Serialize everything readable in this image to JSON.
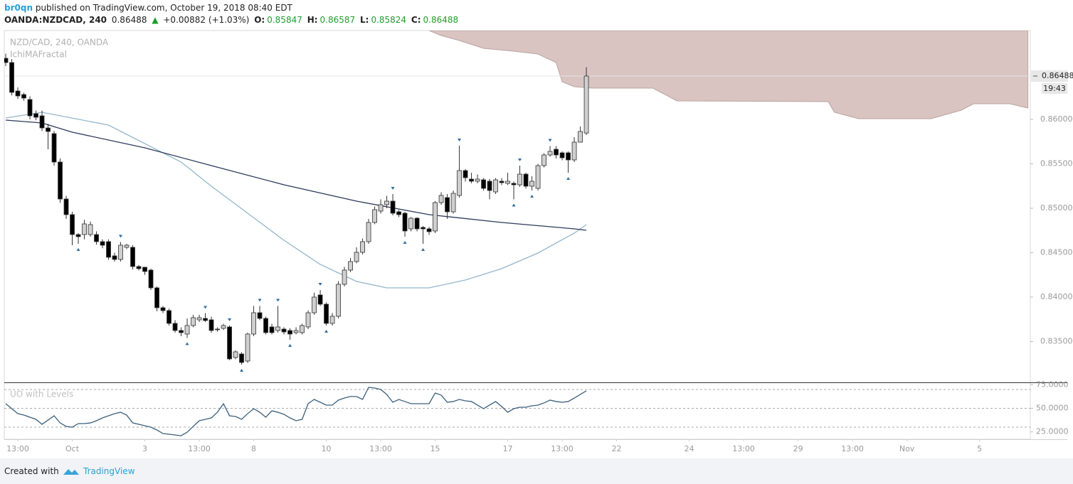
{
  "header": {
    "author": "br0qn",
    "published": "published on TradingView.com, October 19, 2018 08:40 EDT",
    "symbol": "OANDA:NZDCAD, 240",
    "arrow": "▲",
    "change": "+0.00882 (+1.03%)",
    "o": "O:",
    "h": "H:",
    "l": "L:",
    "c": "C:"
  },
  "footer": {
    "created": "Created with",
    "brand": "TradingView"
  },
  "chart_data": {
    "type": "candlestick",
    "title": "NZD/CAD, 240, OANDA",
    "indicator": "IchiMAFractal",
    "countdown": "19:43",
    "up_color": "#cfcfcf",
    "down_color": "#000000",
    "outline_color": "#333333",
    "xlim": [
      -0.24,
      169.4
    ],
    "ylim": [
      0.8304,
      0.87
    ],
    "xticks": [
      {
        "value": 2,
        "label": "13:00"
      },
      {
        "value": 11,
        "label": "Oct"
      },
      {
        "value": 23,
        "label": "3"
      },
      {
        "value": 32,
        "label": "13:00"
      },
      {
        "value": 41,
        "label": "8"
      },
      {
        "value": 53,
        "label": "10"
      },
      {
        "value": 62,
        "label": "13:00"
      },
      {
        "value": 71,
        "label": "15"
      },
      {
        "value": 83,
        "label": "17"
      },
      {
        "value": 92,
        "label": "13:00"
      },
      {
        "value": 101,
        "label": "22"
      },
      {
        "value": 113,
        "label": "24"
      },
      {
        "value": 122,
        "label": "13:00"
      },
      {
        "value": 131,
        "label": "29"
      },
      {
        "value": 140,
        "label": "13:00"
      },
      {
        "value": 149,
        "label": "Nov"
      },
      {
        "value": 161,
        "label": "5"
      }
    ],
    "yticks": [
      {
        "value": 0.835,
        "label": "0.83500"
      },
      {
        "value": 0.84,
        "label": "0.84000"
      },
      {
        "value": 0.845,
        "label": "0.84500"
      },
      {
        "value": 0.85,
        "label": "0.85000"
      },
      {
        "value": 0.855,
        "label": "0.85500"
      },
      {
        "value": 0.86,
        "label": "0.86000"
      }
    ],
    "open": [
      0.86688,
      0.8664,
      0.8632,
      0.8628,
      0.86224,
      0.86064,
      0.8604,
      0.85904,
      0.8584,
      0.8552,
      0.85104,
      0.84928,
      0.84704,
      0.84704,
      0.84704,
      0.84704,
      0.84624,
      0.84624,
      0.84464,
      0.84424,
      0.8456,
      0.8456,
      0.84344,
      0.84336,
      0.84304,
      0.84104,
      0.8388,
      0.83848,
      0.83704,
      0.83624,
      0.83584,
      0.8368,
      0.83744,
      0.8376,
      0.83744,
      0.8364,
      0.83648,
      0.83664,
      0.8332,
      0.8336,
      0.8328,
      0.83584,
      0.83824,
      0.8376,
      0.83664,
      0.83624,
      0.8364,
      0.83624,
      0.836,
      0.836,
      0.83664,
      0.83824,
      0.84024,
      0.8392,
      0.83704,
      0.83784,
      0.84144,
      0.84304,
      0.844,
      0.84504,
      0.84624,
      0.8484,
      0.84968,
      0.8504,
      0.8508,
      0.8496,
      0.84944,
      0.84768,
      0.84888,
      0.84784,
      0.84768,
      0.84744,
      0.85064,
      0.8512,
      0.8496,
      0.85144,
      0.85424,
      0.85328,
      0.85304,
      0.8532,
      0.85304,
      0.85184,
      0.85304,
      0.8528,
      0.8528,
      0.85264,
      0.85384,
      0.85248,
      0.85224,
      0.8548,
      0.856,
      0.85664,
      0.85624,
      0.85624,
      0.85544,
      0.85744,
      0.85847
    ],
    "high": [
      0.8674,
      0.8668,
      0.8636,
      0.863,
      0.8626,
      0.861,
      0.861,
      0.8595,
      0.8587,
      0.8556,
      0.8514,
      0.8496,
      0.8472,
      0.8487,
      0.8485,
      0.8474,
      0.8465,
      0.8465,
      0.845,
      0.8462,
      0.846,
      0.84584,
      0.8436,
      0.8434,
      0.8432,
      0.8412,
      0.839,
      0.8387,
      0.8374,
      0.8366,
      0.8376,
      0.838,
      0.838,
      0.8382,
      0.8378,
      0.8366,
      0.837,
      0.8368,
      0.834,
      0.8338,
      0.836,
      0.839,
      0.839,
      0.8378,
      0.837,
      0.839,
      0.8366,
      0.8365,
      0.8366,
      0.837,
      0.8385,
      0.8405,
      0.8408,
      0.8394,
      0.8382,
      0.8418,
      0.8434,
      0.8444,
      0.8456,
      0.8466,
      0.8488,
      0.8502,
      0.851,
      0.8514,
      0.8516,
      0.8498,
      0.8496,
      0.849,
      0.849,
      0.848,
      0.8479,
      0.8508,
      0.8518,
      0.8516,
      0.852,
      0.85704,
      0.8544,
      0.854,
      0.8538,
      0.8534,
      0.8533,
      0.8534,
      0.8534,
      0.854,
      0.853,
      0.8548,
      0.854,
      0.8536,
      0.855,
      0.8562,
      0.857,
      0.857,
      0.8564,
      0.8564,
      0.858,
      0.8592,
      0.86587
    ],
    "low": [
      0.866,
      0.8627,
      0.8623,
      0.8621,
      0.86,
      0.8599,
      0.8587,
      0.85664,
      0.8548,
      0.8506,
      0.8488,
      0.84584,
      0.846,
      0.8465,
      0.8468,
      0.8459,
      0.8455,
      0.8442,
      0.844,
      0.844,
      0.8454,
      0.8431,
      0.843,
      0.8425,
      0.8408,
      0.8384,
      0.8382,
      0.8368,
      0.836,
      0.8356,
      0.8354,
      0.8366,
      0.8372,
      0.8372,
      0.836,
      0.8361,
      0.8363,
      0.8329,
      0.833,
      0.8324,
      0.8326,
      0.8356,
      0.8374,
      0.8358,
      0.8358,
      0.836,
      0.8358,
      0.8352,
      0.8358,
      0.8358,
      0.8364,
      0.838,
      0.839,
      0.8368,
      0.8368,
      0.8376,
      0.8412,
      0.8428,
      0.8438,
      0.8448,
      0.846,
      0.8482,
      0.8494,
      0.85,
      0.8492,
      0.849,
      0.8468,
      0.8474,
      0.8474,
      0.846,
      0.847,
      0.8472,
      0.8504,
      0.8488,
      0.8494,
      0.8512,
      0.853,
      0.8528,
      0.8528,
      0.852,
      0.851,
      0.8516,
      0.8526,
      0.8526,
      0.851,
      0.8524,
      0.8522,
      0.852,
      0.852,
      0.8546,
      0.8558,
      0.8556,
      0.8554,
      0.854,
      0.8552,
      0.8574,
      0.85824
    ],
    "close": [
      0.8664,
      0.86304,
      0.86264,
      0.8624,
      0.8604,
      0.86024,
      0.85904,
      0.85864,
      0.8552,
      0.85104,
      0.84928,
      0.84704,
      0.8468,
      0.84824,
      0.84816,
      0.84624,
      0.84584,
      0.84448,
      0.84424,
      0.84584,
      0.84584,
      0.84344,
      0.8432,
      0.84288,
      0.84104,
      0.8388,
      0.83848,
      0.83704,
      0.83624,
      0.836,
      0.8368,
      0.83768,
      0.83768,
      0.83736,
      0.83624,
      0.83632,
      0.8368,
      0.83304,
      0.83384,
      0.83264,
      0.83584,
      0.83824,
      0.8376,
      0.836,
      0.836,
      0.83664,
      0.83608,
      0.83584,
      0.83624,
      0.8368,
      0.83824,
      0.84,
      0.8392,
      0.83704,
      0.83784,
      0.84144,
      0.84304,
      0.844,
      0.84504,
      0.84624,
      0.8484,
      0.84984,
      0.8504,
      0.8508,
      0.84944,
      0.84928,
      0.84744,
      0.84888,
      0.84768,
      0.84768,
      0.84736,
      0.85064,
      0.85144,
      0.8496,
      0.85168,
      0.85424,
      0.85344,
      0.85304,
      0.85328,
      0.85224,
      0.852,
      0.8532,
      0.85288,
      0.85304,
      0.85264,
      0.85384,
      0.85248,
      0.85304,
      0.8548,
      0.856,
      0.8564,
      0.856,
      0.85568,
      0.85544,
      0.85744,
      0.85864,
      0.86488
    ],
    "lines": [
      {
        "color": "#93b6cb",
        "x": [
          0,
          6,
          17,
          29,
          34,
          46,
          52,
          58,
          63,
          70,
          76,
          82,
          88,
          94,
          96
        ],
        "values": [
          0.86016,
          0.8608,
          0.85936,
          0.8552,
          0.85248,
          0.8464,
          0.84368,
          0.84176,
          0.84104,
          0.84104,
          0.84192,
          0.8432,
          0.84496,
          0.8472,
          0.84816
        ]
      },
      {
        "color": "#2c3a5c",
        "x": [
          0,
          6,
          11,
          23,
          34,
          46,
          58,
          70,
          82,
          94,
          96
        ],
        "values": [
          0.85992,
          0.8596,
          0.85856,
          0.8568,
          0.8548,
          0.85264,
          0.8508,
          0.84928,
          0.8484,
          0.84768,
          0.84752
        ]
      }
    ],
    "cloud": {
      "color": "#d9c4c1",
      "x": [
        70,
        72,
        75,
        79,
        84,
        88,
        91,
        92,
        94,
        97,
        107,
        111,
        136,
        137,
        141,
        153,
        158,
        160,
        166,
        169
      ],
      "values": [
        0.87,
        0.86944,
        0.86888,
        0.868,
        0.86768,
        0.86736,
        0.8664,
        0.86424,
        0.86368,
        0.86352,
        0.86352,
        0.86208,
        0.862,
        0.8608,
        0.86008,
        0.86008,
        0.86104,
        0.86176,
        0.86176,
        0.86128
      ]
    },
    "fractal_color": "#2f6d9c",
    "fractal_highs": [
      19,
      33,
      37,
      42,
      45,
      52,
      64,
      75,
      85,
      90
    ],
    "fractal_lows": [
      12,
      30,
      39,
      47,
      53,
      66,
      69,
      84,
      87,
      93
    ],
    "oscillator": {
      "title": "UO with Levels",
      "color": "#3b5f7c",
      "ylim": [
        17.2,
        76
      ],
      "yticks": [
        {
          "value": 25,
          "label": "25.0000"
        },
        {
          "value": 50,
          "label": "50.0000"
        },
        {
          "value": 75,
          "label": "75.0000"
        }
      ],
      "levels": [
        70,
        50,
        30
      ],
      "values": [
        54.9,
        49.6,
        44.3,
        42.8,
        40.6,
        38.3,
        33.0,
        37.5,
        42.1,
        34.5,
        30.8,
        30.0,
        33.8,
        33.8,
        34.5,
        36.8,
        39.8,
        42.1,
        44.3,
        45.8,
        42.8,
        34.5,
        33.0,
        31.5,
        30.0,
        27.0,
        23.2,
        22.5,
        21.7,
        20.9,
        24.7,
        30.8,
        36.8,
        38.3,
        39.8,
        45.8,
        54.9,
        42.1,
        41.3,
        38.3,
        44.3,
        49.6,
        45.8,
        40.6,
        47.4,
        45.8,
        43.6,
        39.8,
        36.8,
        38.3,
        54.9,
        59.4,
        56.4,
        53.4,
        53.4,
        58.7,
        60.9,
        62.5,
        62.5,
        59.4,
        72.3,
        71.5,
        70.0,
        64.7,
        56.4,
        59.4,
        57.2,
        54.9,
        54.9,
        54.9,
        54.9,
        66.2,
        64.0,
        56.4,
        57.2,
        59.4,
        57.9,
        57.2,
        53.4,
        49.6,
        53.4,
        57.2,
        51.9,
        45.8,
        49.6,
        51.1,
        51.1,
        52.6,
        53.4,
        55.7,
        58.7,
        57.2,
        56.4,
        57.2,
        60.9,
        64.7,
        68.5
      ]
    }
  }
}
